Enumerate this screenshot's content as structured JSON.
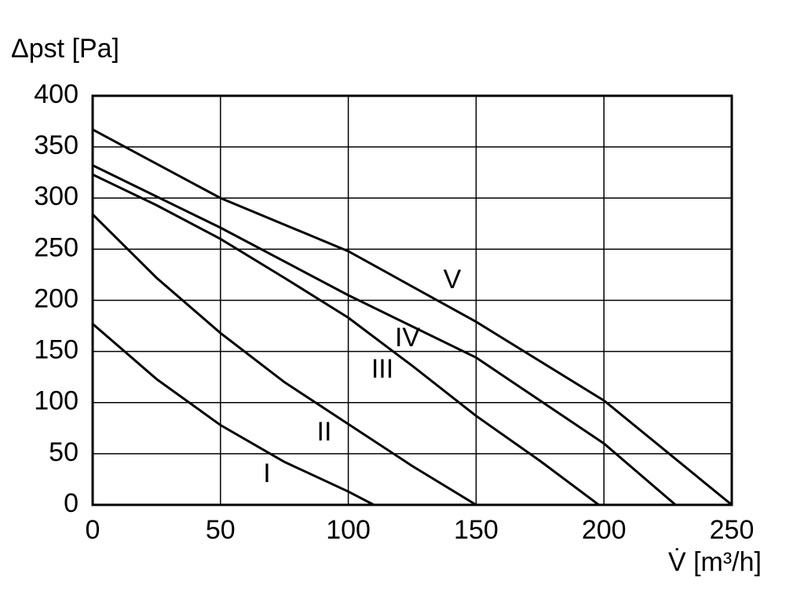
{
  "chart_data": {
    "type": "line",
    "ylabel": "Δpst [Pa]",
    "xlabel": "V̇ [m³/h]",
    "xlim": [
      0,
      250
    ],
    "xticks": [
      0,
      50,
      100,
      150,
      200,
      250
    ],
    "ylim": [
      0,
      400
    ],
    "yticks": [
      0,
      50,
      100,
      150,
      200,
      250,
      300,
      350,
      400
    ],
    "grid": true,
    "series": [
      {
        "name": "I",
        "color": "#000000",
        "x": [
          0,
          25,
          50,
          75,
          100,
          110
        ],
        "values": [
          177,
          123,
          78,
          42,
          13,
          0
        ]
      },
      {
        "name": "II",
        "color": "#000000",
        "x": [
          0,
          25,
          50,
          75,
          100,
          125,
          150
        ],
        "values": [
          284,
          222,
          168,
          120,
          79,
          38,
          0
        ]
      },
      {
        "name": "III",
        "color": "#000000",
        "x": [
          0,
          25,
          50,
          75,
          100,
          125,
          150,
          175,
          198
        ],
        "values": [
          323,
          293,
          260,
          222,
          183,
          136,
          87,
          43,
          0
        ]
      },
      {
        "name": "IV",
        "color": "#000000",
        "x": [
          0,
          50,
          100,
          150,
          200,
          228
        ],
        "values": [
          332,
          271,
          205,
          144,
          60,
          0
        ]
      },
      {
        "name": "V",
        "color": "#000000",
        "x": [
          0,
          50,
          100,
          150,
          200,
          250
        ],
        "values": [
          367,
          300,
          248,
          179,
          102,
          0
        ]
      }
    ]
  }
}
